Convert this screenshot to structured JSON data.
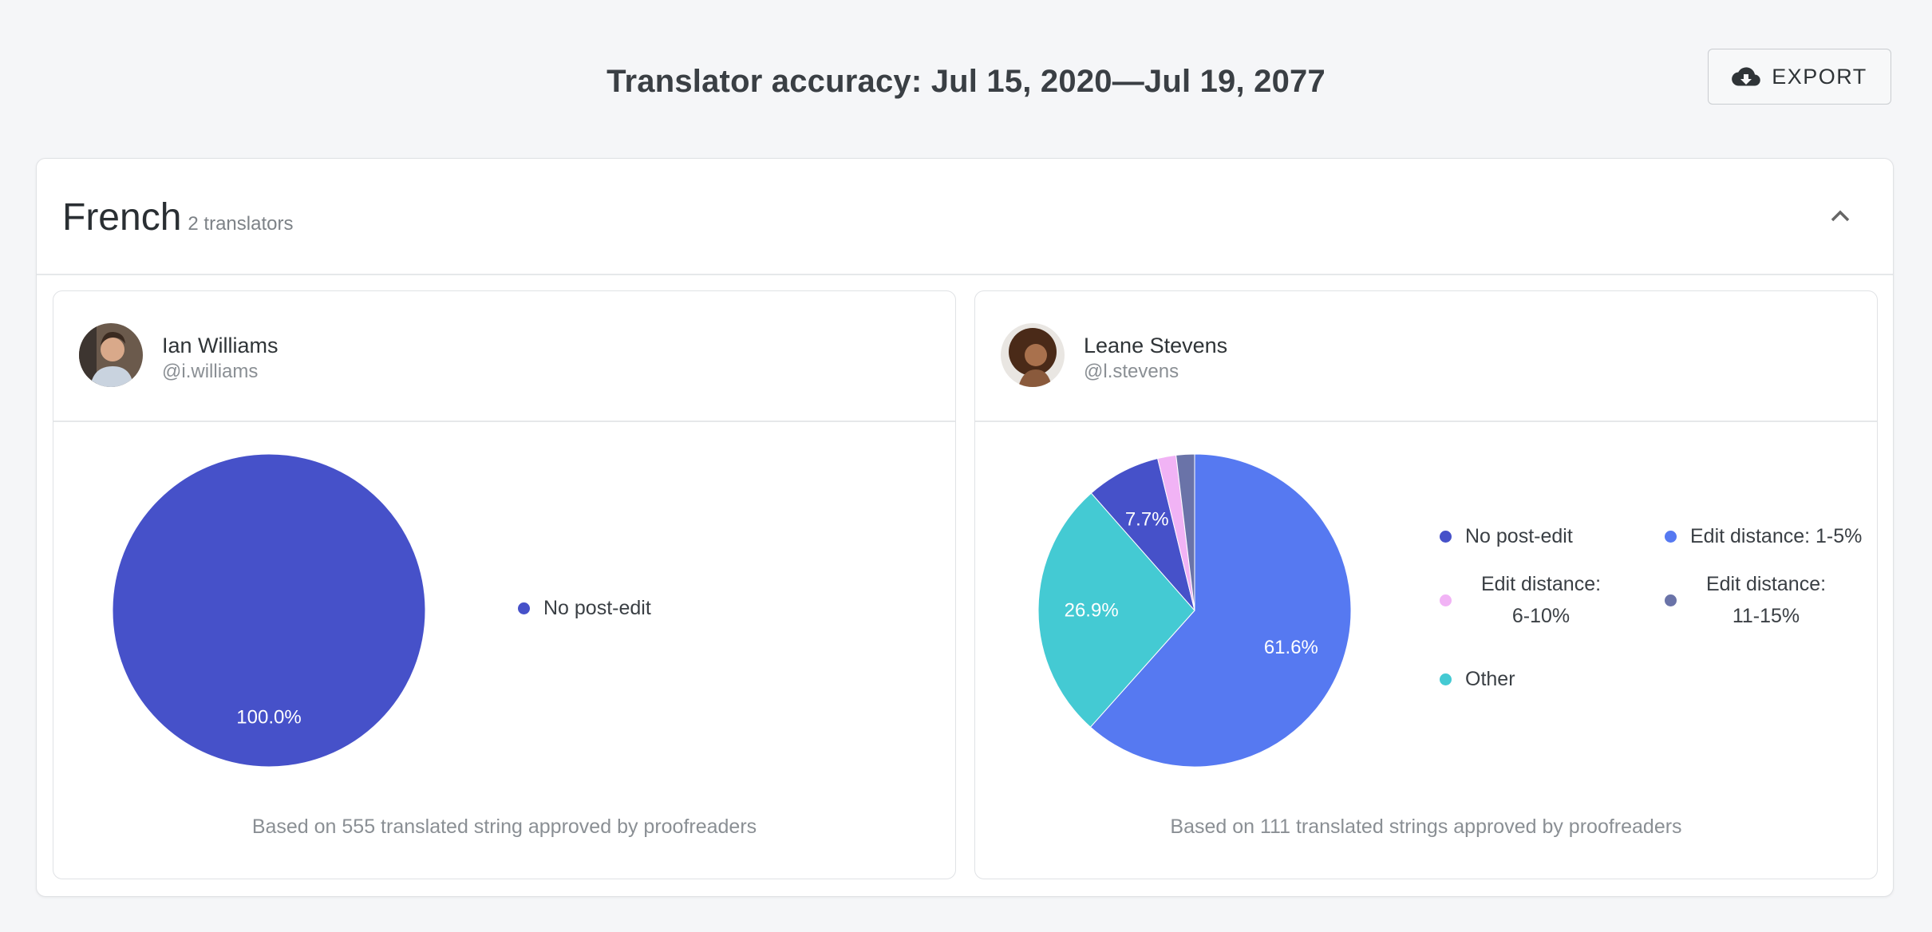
{
  "header": {
    "title": "Translator accuracy: Jul 15, 2020—Jul 19, 2077",
    "export_label": "EXPORT",
    "export_icon": "cloud-download-icon"
  },
  "language": {
    "name": "French",
    "count": "2 translators",
    "collapse_icon": "chevron-up-icon"
  },
  "translators": [
    {
      "name": "Ian Williams",
      "handle": "@i.williams",
      "footer": "Based on 555 translated string approved by proofreaders"
    },
    {
      "name": "Leane Stevens",
      "handle": "@l.stevens",
      "footer": "Based on 111 translated strings approved by proofreaders"
    }
  ],
  "chart_data": [
    {
      "type": "pie",
      "slices": [
        {
          "label": "No post-edit",
          "value": 100.0,
          "value_label": "100.0%",
          "color": "#4651c9"
        }
      ],
      "legend": [
        "No post-edit"
      ],
      "legend_placement": "right"
    },
    {
      "type": "pie",
      "slices": [
        {
          "label": "Edit distance: 1-5%",
          "value": 61.6,
          "value_label": "61.6%",
          "color": "#5679f1"
        },
        {
          "label": "Other",
          "value": 26.9,
          "value_label": "26.9%",
          "color": "#44cad3"
        },
        {
          "label": "No post-edit",
          "value": 7.7,
          "value_label": "7.7%",
          "color": "#4651c9"
        },
        {
          "label": "Edit distance: 6-10%",
          "value": 1.9,
          "value_label": "",
          "color": "#f1b3f5"
        },
        {
          "label": "Edit distance: 11-15%",
          "value": 1.9,
          "value_label": "",
          "color": "#6a73a8"
        }
      ],
      "legend": [
        "No post-edit",
        "Edit distance: 1-5%",
        "Edit distance: 6-10%",
        "Edit distance: 11-15%",
        "Other"
      ],
      "legend_lines": {
        "six_ten": [
          "Edit distance:",
          "6-10%"
        ],
        "eleven_fifteen": [
          "Edit distance:",
          "11-15%"
        ]
      },
      "legend_placement": "right"
    }
  ]
}
